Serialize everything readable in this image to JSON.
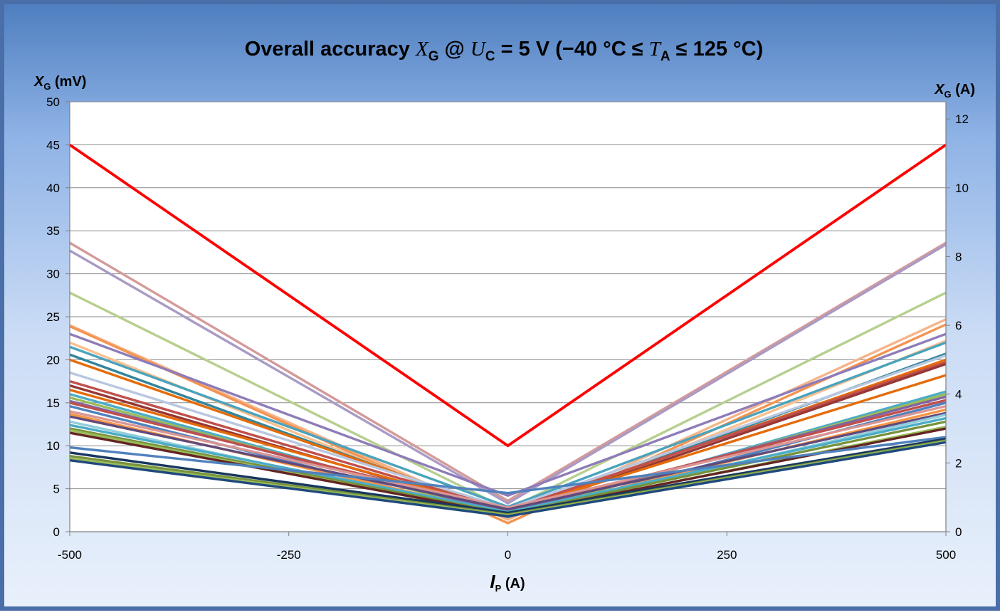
{
  "chart_data": {
    "type": "line",
    "title": {
      "prefix": "Overall accuracy ",
      "sym1": "X",
      "sub1": "G",
      "middle": " @ ",
      "sym2": "U",
      "sub2": "C",
      "cond": " = 5 V (−40 °C ≤ ",
      "sym3": "T",
      "sub3": "A",
      "suffix": " ≤ 125 °C)"
    },
    "y_left_label": {
      "sym": "X",
      "sub": "G",
      "unit": " (mV)"
    },
    "y_right_label": {
      "sym": "X",
      "sub": "G",
      "unit": " (A)"
    },
    "x_label": {
      "sym": "I",
      "sub": "P",
      "unit": " (A)"
    },
    "x": [
      -500,
      0,
      500
    ],
    "xlim": [
      -500,
      500
    ],
    "ylim_left": [
      0,
      50
    ],
    "ylim_right": [
      0,
      12.5
    ],
    "x_ticks": [
      "-500",
      "-250",
      "0",
      "250",
      "500"
    ],
    "x_tick_values": [
      -500,
      -250,
      0,
      250,
      500
    ],
    "y_left_ticks": [
      "0",
      "5",
      "10",
      "15",
      "20",
      "25",
      "30",
      "35",
      "40",
      "45",
      "50"
    ],
    "y_left_tick_values": [
      0,
      5,
      10,
      15,
      20,
      25,
      30,
      35,
      40,
      45,
      50
    ],
    "y_right_ticks": [
      "0",
      "2",
      "4",
      "6",
      "8",
      "10",
      "12"
    ],
    "y_right_tick_values": [
      0,
      2,
      4,
      6,
      8,
      10,
      12
    ],
    "grid": true,
    "limit_color": "#ff0000",
    "limit_series": {
      "values": [
        45,
        10,
        45
      ]
    },
    "series": [
      {
        "values": [
          33.6,
          3.6,
          33.6
        ],
        "color": "#d49a9a"
      },
      {
        "values": [
          32.7,
          3.3,
          33.4
        ],
        "color": "#a99bc4"
      },
      {
        "values": [
          27.8,
          2.6,
          27.8
        ],
        "color": "#b7cf8f"
      },
      {
        "values": [
          24.0,
          1.4,
          24.7
        ],
        "color": "#f5b48a"
      },
      {
        "values": [
          23.9,
          1.0,
          24.1
        ],
        "color": "#f39451"
      },
      {
        "values": [
          23.0,
          4.2,
          23.0
        ],
        "color": "#8e7cb8"
      },
      {
        "values": [
          22.0,
          1.6,
          22.2
        ],
        "color": "#fac090"
      },
      {
        "values": [
          21.5,
          2.9,
          22.0
        ],
        "color": "#4aa3bd"
      },
      {
        "values": [
          20.6,
          2.1,
          20.7
        ],
        "color": "#31859c"
      },
      {
        "values": [
          20.0,
          2.3,
          20.0
        ],
        "color": "#e46c0a"
      },
      {
        "values": [
          18.5,
          2.7,
          20.5
        ],
        "color": "#b9c7e0"
      },
      {
        "values": [
          17.5,
          2.5,
          19.7
        ],
        "color": "#c0504d"
      },
      {
        "values": [
          17.0,
          2.1,
          19.5
        ],
        "color": "#953735"
      },
      {
        "values": [
          16.5,
          2.4,
          18.2
        ],
        "color": "#e46c0a"
      },
      {
        "values": [
          16.0,
          1.8,
          16.3
        ],
        "color": "#4bacc6"
      },
      {
        "values": [
          15.6,
          1.9,
          16.0
        ],
        "color": "#9bbb59"
      },
      {
        "values": [
          15.2,
          2.2,
          15.7
        ],
        "color": "#8064a2"
      },
      {
        "values": [
          15.0,
          2.5,
          15.3
        ],
        "color": "#c0504d"
      },
      {
        "values": [
          14.6,
          1.7,
          15.0
        ],
        "color": "#4f81bd"
      },
      {
        "values": [
          14.0,
          2.8,
          14.6
        ],
        "color": "#d99694"
      },
      {
        "values": [
          13.7,
          2.0,
          14.2
        ],
        "color": "#f79646"
      },
      {
        "values": [
          13.4,
          2.6,
          13.8
        ],
        "color": "#604a7b"
      },
      {
        "values": [
          12.8,
          1.8,
          13.6
        ],
        "color": "#92cddc"
      },
      {
        "values": [
          12.4,
          2.3,
          13.2
        ],
        "color": "#4bacc6"
      },
      {
        "values": [
          12.0,
          2.1,
          12.8
        ],
        "color": "#76923c"
      },
      {
        "values": [
          11.8,
          1.9,
          12.2
        ],
        "color": "#9bbb59"
      },
      {
        "values": [
          11.5,
          2.0,
          12.0
        ],
        "color": "#632523"
      },
      {
        "values": [
          9.8,
          4.5,
          11.0
        ],
        "color": "#4f81bd"
      },
      {
        "values": [
          9.2,
          2.2,
          10.8
        ],
        "color": "#17375e"
      },
      {
        "values": [
          8.8,
          2.0,
          10.6
        ],
        "color": "#77933c"
      },
      {
        "values": [
          8.5,
          1.9,
          10.5
        ],
        "color": "#9bbb59"
      },
      {
        "values": [
          8.3,
          1.8,
          10.4
        ],
        "color": "#1f497d"
      }
    ]
  }
}
